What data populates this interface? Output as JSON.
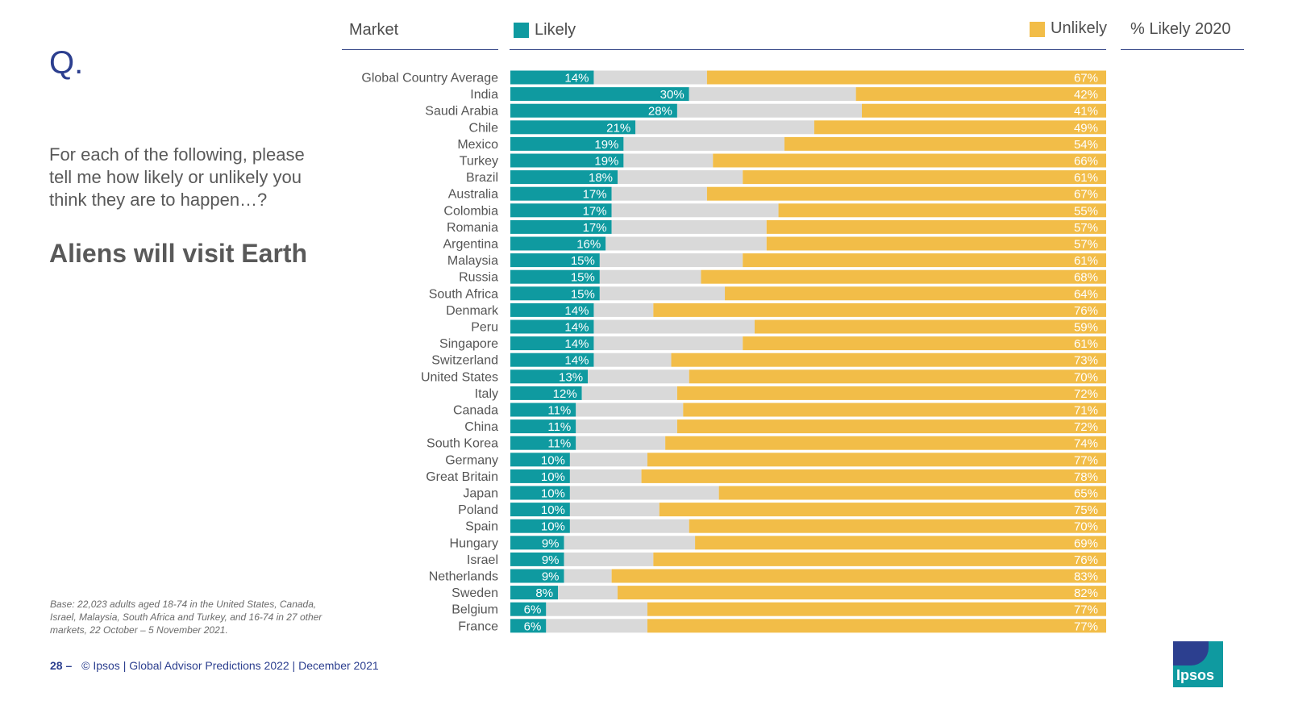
{
  "slide": {
    "q_mark": "Q.",
    "question": "For each of the following, please tell me how likely or unlikely you think they are to happen…?",
    "headline": "Aliens will visit Earth",
    "base_note": "Base: 22,023 adults aged 18-74 in the United States, Canada, Israel, Malaysia, South Africa and Turkey, and 16-74 in 27 other markets, 22 October – 5 November 2021.",
    "page_number": "28 –",
    "footer": "© Ipsos | Global Advisor Predictions 2022 | December 2021",
    "logo_text": "Ipsos"
  },
  "headers": {
    "market": "Market",
    "likely": "Likely",
    "unlikely": "Unlikely",
    "likely_2020": "% Likely 2020"
  },
  "colors": {
    "likely": "#0f9aa0",
    "neutral": "#d9d9d9",
    "unlikely": "#f2bd48",
    "brand": "#2c3f8f"
  },
  "chart_data": {
    "type": "bar",
    "stacked": true,
    "orientation": "horizontal",
    "categories": [
      "Global Country Average",
      "India",
      "Saudi Arabia",
      "Chile",
      "Mexico",
      "Turkey",
      "Brazil",
      "Australia",
      "Colombia",
      "Romania",
      "Argentina",
      "Malaysia",
      "Russia",
      "South Africa",
      "Denmark",
      "Peru",
      "Singapore",
      "Switzerland",
      "United States",
      "Italy",
      "Canada",
      "China",
      "South Korea",
      "Germany",
      "Great Britain",
      "Japan",
      "Poland",
      "Spain",
      "Hungary",
      "Israel",
      "Netherlands",
      "Sweden",
      "Belgium",
      "France"
    ],
    "series": [
      {
        "name": "Likely",
        "values": [
          14,
          30,
          28,
          21,
          19,
          19,
          18,
          17,
          17,
          17,
          16,
          15,
          15,
          15,
          14,
          14,
          14,
          14,
          13,
          12,
          11,
          11,
          11,
          10,
          10,
          10,
          10,
          10,
          9,
          9,
          9,
          8,
          6,
          6
        ]
      },
      {
        "values": [
          19,
          28,
          31,
          30,
          27,
          15,
          21,
          16,
          28,
          26,
          27,
          24,
          17,
          21,
          10,
          27,
          25,
          13,
          17,
          16,
          18,
          17,
          15,
          13,
          12,
          25,
          15,
          20,
          22,
          15,
          8,
          10,
          17,
          17
        ]
      },
      {
        "name": "Unlikely",
        "values": [
          67,
          42,
          41,
          49,
          54,
          66,
          61,
          67,
          55,
          57,
          57,
          61,
          68,
          64,
          76,
          59,
          61,
          73,
          70,
          72,
          71,
          72,
          74,
          77,
          78,
          65,
          75,
          70,
          69,
          76,
          83,
          82,
          77,
          77
        ]
      }
    ],
    "xlim": [
      0,
      100
    ]
  }
}
